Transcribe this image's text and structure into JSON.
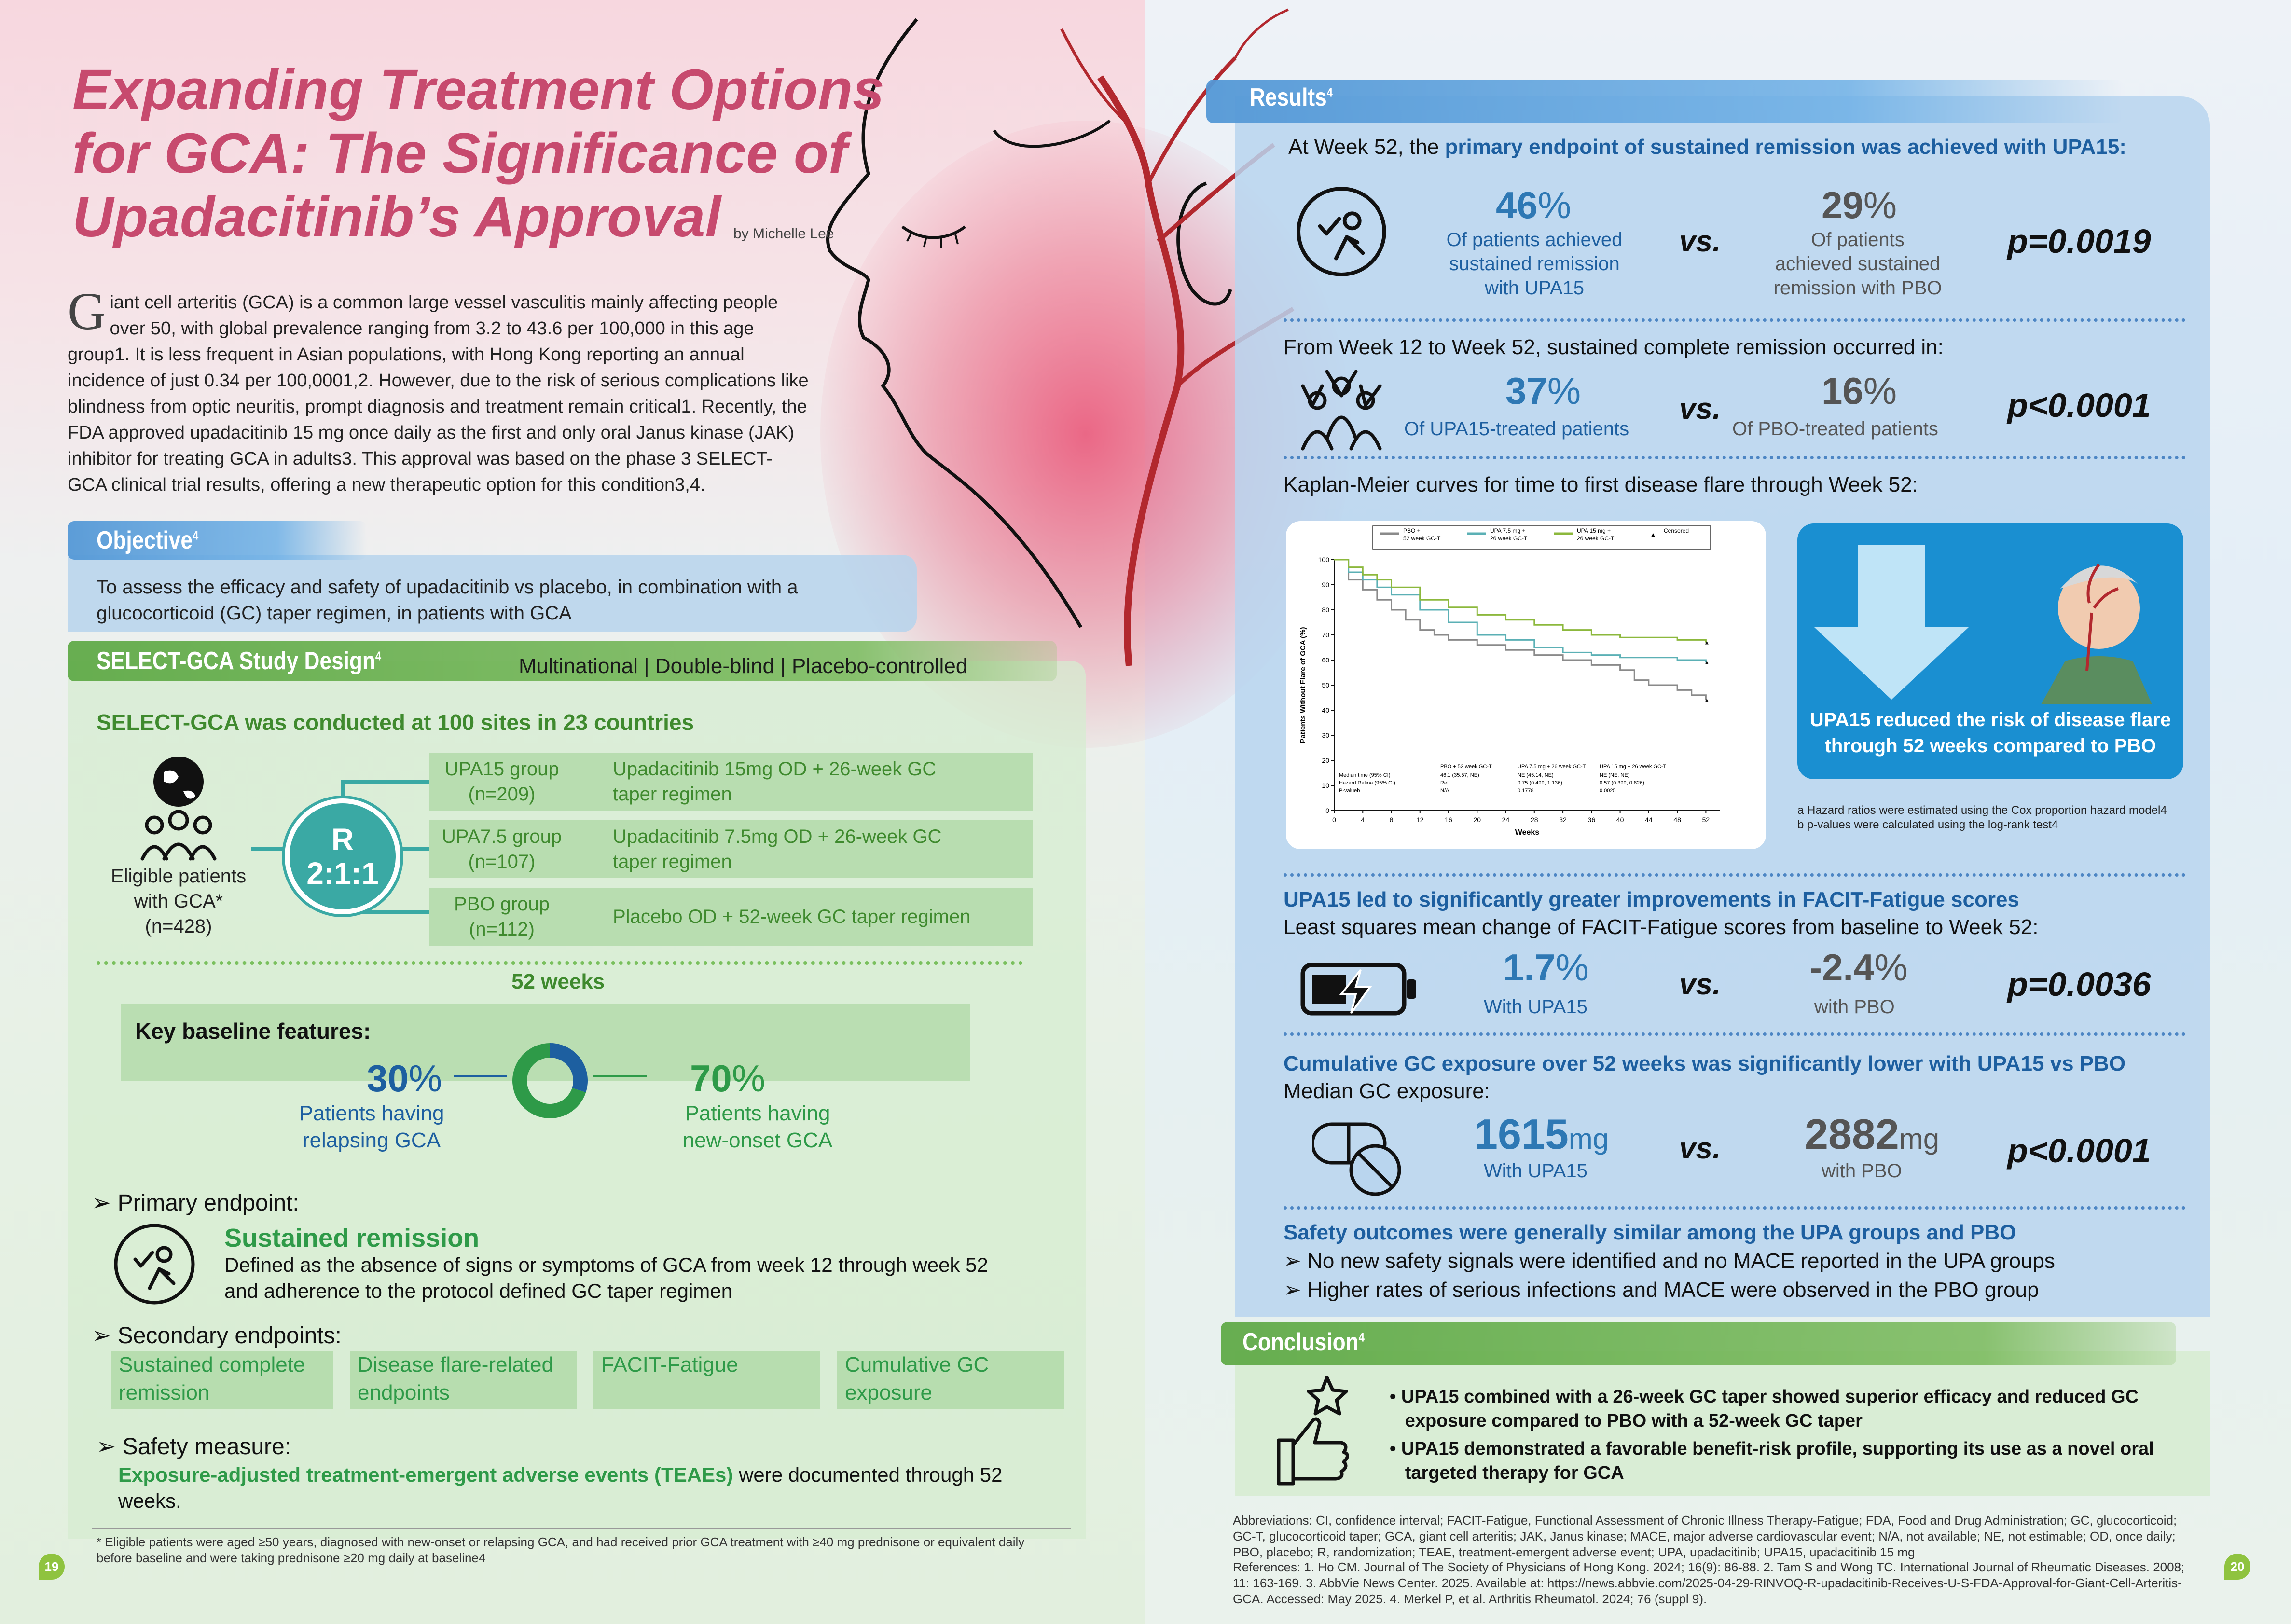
{
  "title": {
    "line1": "Expanding Treatment Options",
    "line2": "for GCA: The Significance of",
    "line3": "Upadacitinib’s Approval",
    "byline": "by Michelle Lee"
  },
  "intro": {
    "dropcap": "G",
    "text": "iant cell arteritis (GCA) is a common large vessel vasculitis mainly affecting people over 50, with global prevalence ranging from 3.2 to 43.6 per 100,000 in this age group1. It is less frequent in Asian populations, with Hong Kong reporting an annual incidence of just 0.34 per 100,0001,2. However, due to the risk of serious complications like blindness from optic neuritis, prompt diagnosis and treatment remain critical1. Recently, the FDA approved upadacitinib 15 mg once daily as the first and only oral Janus kinase (JAK) inhibitor for treating GCA in adults3. This approval was based on the phase 3 SELECT-GCA clinical trial results, offering a new therapeutic option for this condition3,4."
  },
  "objective": {
    "heading": "Objective",
    "sup": "4",
    "text": "To assess the efficacy and safety of upadacitinib vs placebo, in combination with a glucocorticoid (GC) taper regimen, in patients with GCA"
  },
  "study": {
    "heading": "SELECT-GCA Study Design",
    "sup": "4",
    "design": "Multinational | Double-blind | Placebo-controlled",
    "sites": "SELECT-GCA was conducted at 100 sites in 23 countries",
    "eligible_line1": "Eligible patients",
    "eligible_line2": "with GCA*",
    "eligible_n": "(n=428)",
    "randomization": "R",
    "ratio": "2:1:1",
    "groups": [
      {
        "name": "UPA15 group",
        "n": "(n=209)",
        "desc_line1": "Upadacitinib 15mg OD + 26-week GC",
        "desc_line2": "taper regimen"
      },
      {
        "name": "UPA7.5 group",
        "n": "(n=107)",
        "desc_line1": "Upadacitinib 7.5mg OD + 26-week GC",
        "desc_line2": "taper regimen"
      },
      {
        "name": "PBO group",
        "n": "(n=112)",
        "desc_line1": "Placebo OD + 52-week GC taper regimen",
        "desc_line2": ""
      }
    ],
    "duration": "52 weeks",
    "baseline_heading": "Key baseline features:",
    "relapsing_pct": "30",
    "relapsing_line1": "Patients having",
    "relapsing_line2": "relapsing GCA",
    "newonset_pct": "70",
    "newonset_line1": "Patients having",
    "newonset_line2": "new-onset GCA",
    "percent_sign": "%",
    "primary_heading": "Primary endpoint:",
    "primary_name": "Sustained remission",
    "primary_desc_line1": "Defined as the absence of signs or symptoms of GCA from week 12 through week 52",
    "primary_desc_line2": "and adherence to the protocol defined GC taper regimen",
    "secondary_heading": "Secondary endpoints:",
    "secondary": [
      {
        "line1": "Sustained complete",
        "line2": "remission"
      },
      {
        "line1": "Disease flare-related",
        "line2": "endpoints"
      },
      {
        "line1": "FACIT-Fatigue",
        "line2": ""
      },
      {
        "line1": "Cumulative GC",
        "line2": "exposure"
      }
    ],
    "safety_heading": "Safety measure:",
    "safety_bold": "Exposure-adjusted treatment-emergent adverse events (TEAEs)",
    "safety_rest": " were documented through 52",
    "safety_rest2": "weeks.",
    "footnote": "* Eligible patients were aged ≥50 years, diagnosed with new-onset or relapsing GCA, and had received prior GCA treatment with ≥40 mg prednisone or equivalent daily before baseline and were taking prednisone ≥20 mg daily at baseline4"
  },
  "results": {
    "heading": "Results",
    "sup": "4",
    "primary_intro": "At Week 52, the ",
    "primary_intro_bold": "primary endpoint of sustained remission was achieved with UPA15:",
    "sr_upa": "46",
    "sr_upa_line1": "Of patients achieved",
    "sr_upa_line2": "sustained remission",
    "sr_upa_line3": "with UPA15",
    "sr_pbo": "29",
    "sr_pbo_line1": "Of patients",
    "sr_pbo_line2": "achieved sustained",
    "sr_pbo_line3": "remission with PBO",
    "sr_p": "p=0.0019",
    "vs": "vs.",
    "pct": "%",
    "scr_intro": "From Week 12 to Week 52, sustained complete remission occurred in:",
    "scr_upa": "37",
    "scr_upa_label": "Of UPA15-treated patients",
    "scr_pbo": "16",
    "scr_pbo_label": "Of PBO-treated patients",
    "scr_p": "p<0.0001",
    "km_intro": "Kaplan-Meier curves for time to first disease flare through Week 52:",
    "km_callout": "UPA15 reduced the risk of disease flare through 52 weeks compared to PBO",
    "km_note_a": "a  Hazard ratios were estimated using the Cox proportion hazard model4",
    "km_note_b": "b  p-values were calculated using the log-rank test4",
    "facit_heading": "UPA15 led to significantly greater improvements in FACIT-Fatigue scores",
    "facit_sub": "Least squares mean change of FACIT-Fatigue scores from baseline to Week 52:",
    "facit_upa": "1.7",
    "facit_upa_label": "With UPA15",
    "facit_pbo": "-2.4",
    "facit_pbo_label": "with PBO",
    "facit_p": "p=0.0036",
    "gc_heading": "Cumulative GC exposure over 52 weeks was significantly lower with UPA15 vs PBO",
    "gc_sub": "Median GC exposure:",
    "gc_upa": "1615",
    "gc_unit": "mg",
    "gc_upa_label": "With UPA15",
    "gc_pbo": "2882",
    "gc_pbo_label": "with PBO",
    "gc_p": "p<0.0001",
    "safety_heading": "Safety outcomes were generally similar among the UPA groups and PBO",
    "safety_1": "No new safety signals were identified and no MACE reported in the UPA groups",
    "safety_2": "Higher rates of serious infections and MACE were observed in the PBO group"
  },
  "conclusion": {
    "heading": "Conclusion",
    "sup": "4",
    "bullet1_line1": "UPA15 combined with a 26-week GC taper showed superior efficacy and reduced GC",
    "bullet1_line2": "exposure compared to PBO with a 52-week GC taper",
    "bullet2_line1": "UPA15 demonstrated a favorable benefit-risk profile, supporting its use as a novel oral",
    "bullet2_line2": "targeted therapy for GCA"
  },
  "abbreviations": "Abbreviations: CI, confidence interval; FACIT-Fatigue, Functional Assessment of Chronic Illness Therapy-Fatigue; FDA, Food and Drug Administration; GC, glucocorticoid; GC-T, glucocorticoid taper; GCA, giant cell arteritis; JAK, Janus kinase; MACE, major adverse cardiovascular event; N/A, not available; NE, not estimable; OD, once daily; PBO, placebo; R, randomization; TEAE, treatment-emergent adverse event; UPA, upadacitinib; UPA15, upadacitinib 15 mg",
  "references": "References: 1. Ho CM. Journal of The Society of Physicians of Hong Kong. 2024; 16(9): 86-88. 2. Tam S and Wong TC. International Journal of Rheumatic Diseases. 2008; 11: 163-169. 3. AbbVie News Center. 2025. Available at: https://news.abbvie.com/2025-04-29-RINVOQ-R-upadacitinib-Receives-U-S-FDA-Approval-for-Giant-Cell-Arteritis-GCA. Accessed: May 2025. 4. Merkel P, et al. Arthritis Rheumatol. 2024; 76 (suppl 9).",
  "page_left": "19",
  "page_right": "20",
  "chart_data": {
    "type": "line",
    "title": "",
    "xlabel": "Weeks",
    "ylabel": "Patients Without Flare of GCA (%)",
    "xlim": [
      0,
      54
    ],
    "ylim": [
      0,
      100
    ],
    "xticks": [
      "0",
      "4",
      "8",
      "12",
      "16",
      "20",
      "24",
      "28",
      "32",
      "36",
      "40",
      "44",
      "48",
      "52"
    ],
    "yticks": [
      "0",
      "10",
      "20",
      "30",
      "40",
      "50",
      "60",
      "70",
      "80",
      "90",
      "100"
    ],
    "legend": [
      {
        "line1": "PBO +",
        "line2": "52 week GC-T"
      },
      {
        "line1": "UPA 7.5 mg +",
        "line2": "26 week GC-T"
      },
      {
        "line1": "UPA 15 mg +",
        "line2": "26 week GC-T"
      },
      {
        "line1": "Censored",
        "line2": ""
      }
    ],
    "legend_placement": "top",
    "series": [
      {
        "name": "PBO + 52 week GC-T",
        "color": "#8a8a8a",
        "x": [
          0,
          2,
          4,
          6,
          8,
          10,
          12,
          14,
          16,
          20,
          24,
          28,
          32,
          36,
          40,
          42,
          44,
          48,
          50,
          52
        ],
        "y": [
          100,
          92,
          88,
          84,
          80,
          76,
          72,
          70,
          68,
          66,
          64,
          62,
          60,
          58,
          56,
          52,
          50,
          48,
          46,
          44
        ]
      },
      {
        "name": "UPA 7.5 mg + 26 week GC-T",
        "color": "#5bb0b5",
        "x": [
          0,
          2,
          4,
          6,
          8,
          12,
          16,
          20,
          24,
          28,
          32,
          36,
          40,
          44,
          48,
          52
        ],
        "y": [
          100,
          95,
          92,
          89,
          86,
          80,
          75,
          70,
          68,
          65,
          63,
          62,
          61,
          61,
          60,
          59
        ]
      },
      {
        "name": "UPA 15 mg + 26 week GC-T",
        "color": "#8cb83c",
        "x": [
          0,
          2,
          4,
          6,
          8,
          12,
          16,
          20,
          24,
          28,
          32,
          36,
          40,
          44,
          48,
          52
        ],
        "y": [
          100,
          97,
          94,
          92,
          89,
          84,
          81,
          78,
          76,
          74,
          72,
          70,
          69,
          69,
          68,
          67
        ]
      }
    ],
    "table": {
      "headers": [
        "",
        "PBO + 52 week GC-T",
        "UPA 7.5 mg + 26 week GC-T",
        "UPA 15 mg + 26 week GC-T"
      ],
      "rows": [
        [
          "Median time (95% CI)",
          "46.1 (35.57, NE)",
          "NE (45.14, NE)",
          "NE (NE, NE)"
        ],
        [
          "Hazard Ratioa (95% CI)",
          "Ref",
          "0.75 (0.499, 1.136)",
          "0.57 (0.399, 0.826)"
        ],
        [
          "P-valueb",
          "N/A",
          "0.1778",
          "0.0025"
        ]
      ]
    }
  }
}
